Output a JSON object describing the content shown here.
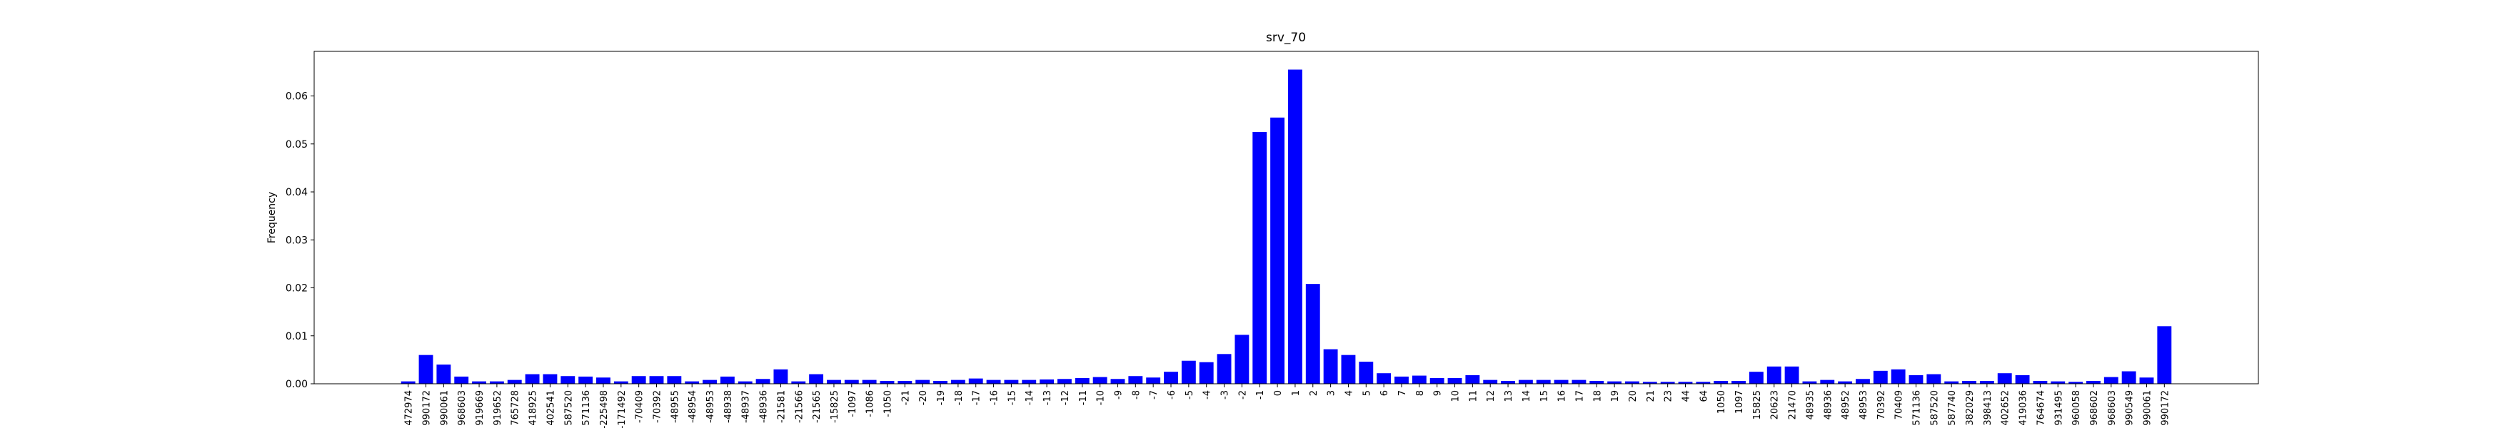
{
  "chart_data": {
    "type": "bar",
    "title": "srv_70",
    "y_label": "Frequency",
    "color": "#0000ff",
    "categories": [
      "472974",
      "990172",
      "990061",
      "968603",
      "919669",
      "919652",
      "765728",
      "418925",
      "402541",
      "587520",
      "571136",
      "-225498",
      "-171492",
      "-70409",
      "-70392",
      "-48955",
      "-48954",
      "-48953",
      "-48938",
      "-48937",
      "-48936",
      "-21581",
      "-21566",
      "-21565",
      "-15825",
      "-1097",
      "-1086",
      "-1050",
      "-21",
      "-20",
      "-19",
      "-18",
      "-17",
      "-16",
      "-15",
      "-14",
      "-13",
      "-12",
      "-11",
      "-10",
      "-9",
      "-8",
      "-7",
      "-6",
      "-5",
      "-4",
      "-3",
      "-2",
      "-1",
      "0",
      "1",
      "2",
      "3",
      "4",
      "5",
      "6",
      "7",
      "8",
      "9",
      "10",
      "11",
      "12",
      "13",
      "14",
      "15",
      "16",
      "17",
      "18",
      "19",
      "20",
      "21",
      "23",
      "44",
      "64",
      "1050",
      "1097",
      "15825",
      "20623",
      "21470",
      "48935",
      "48936",
      "48952",
      "48953",
      "70392",
      "70409",
      "571136",
      "587520",
      "587740",
      "382029",
      "398413",
      "402652",
      "419036",
      "764674",
      "931495",
      "960058",
      "968602",
      "968603",
      "990549",
      "990061",
      "990172"
    ],
    "values": [
      0.0005,
      0.006,
      0.004,
      0.0015,
      0.0005,
      0.0005,
      0.0008,
      0.002,
      0.002,
      0.0016,
      0.0015,
      0.0013,
      0.0005,
      0.0016,
      0.0016,
      0.0016,
      0.0005,
      0.0008,
      0.0015,
      0.0005,
      0.001,
      0.003,
      0.0005,
      0.002,
      0.0008,
      0.0008,
      0.0008,
      0.0006,
      0.0006,
      0.0008,
      0.0006,
      0.0008,
      0.0011,
      0.0008,
      0.0008,
      0.0008,
      0.0009,
      0.001,
      0.0012,
      0.0014,
      0.001,
      0.0016,
      0.0013,
      0.0025,
      0.0048,
      0.0045,
      0.0062,
      0.0102,
      0.0525,
      0.0555,
      0.0655,
      0.0208,
      0.0072,
      0.006,
      0.0046,
      0.0022,
      0.0015,
      0.0017,
      0.0012,
      0.0012,
      0.0018,
      0.0008,
      0.0006,
      0.0008,
      0.0008,
      0.0008,
      0.0008,
      0.0006,
      0.0005,
      0.0005,
      0.0004,
      0.0004,
      0.0004,
      0.0004,
      0.0006,
      0.0006,
      0.0025,
      0.0036,
      0.0036,
      0.0005,
      0.0008,
      0.0005,
      0.001,
      0.0027,
      0.003,
      0.0018,
      0.002,
      0.0005,
      0.0006,
      0.0006,
      0.0022,
      0.0018,
      0.0006,
      0.0005,
      0.0004,
      0.0006,
      0.0014,
      0.0026,
      0.0013,
      0.012
    ],
    "ylim": [
      0,
      0.0693
    ],
    "yticks": [
      {
        "value": 0,
        "label": "0.00"
      },
      {
        "value": 0.01,
        "label": "0.01"
      },
      {
        "value": 0.02,
        "label": "0.02"
      },
      {
        "value": 0.03,
        "label": "0.03"
      },
      {
        "value": 0.04,
        "label": "0.04"
      },
      {
        "value": 0.05,
        "label": "0.05"
      },
      {
        "value": 0.06,
        "label": "0.06"
      }
    ]
  }
}
